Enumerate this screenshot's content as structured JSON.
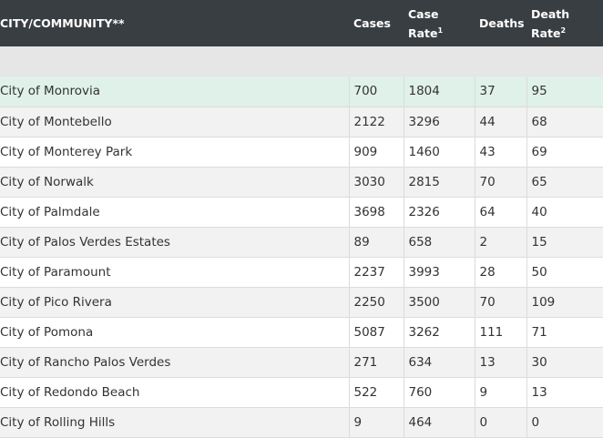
{
  "header": {
    "city": "CITY/COMMUNITY**",
    "cases": "Cases",
    "case_rate_line1": "Case",
    "case_rate_line2": "Rate",
    "case_rate_sup": "1",
    "deaths": "Deaths",
    "death_rate_line1": "Death",
    "death_rate_line2": "Rate",
    "death_rate_sup": "2"
  },
  "rows": [
    {
      "city": "City of Monrovia",
      "cases": "700",
      "case_rate": "1804",
      "deaths": "37",
      "death_rate": "95"
    },
    {
      "city": "City of Montebello",
      "cases": "2122",
      "case_rate": "3296",
      "deaths": "44",
      "death_rate": "68"
    },
    {
      "city": "City of Monterey Park",
      "cases": "909",
      "case_rate": "1460",
      "deaths": "43",
      "death_rate": "69"
    },
    {
      "city": "City of Norwalk",
      "cases": "3030",
      "case_rate": "2815",
      "deaths": "70",
      "death_rate": "65"
    },
    {
      "city": "City of Palmdale",
      "cases": "3698",
      "case_rate": "2326",
      "deaths": "64",
      "death_rate": "40"
    },
    {
      "city": "City of Palos Verdes Estates",
      "cases": "89",
      "case_rate": "658",
      "deaths": "2",
      "death_rate": "15"
    },
    {
      "city": "City of Paramount",
      "cases": "2237",
      "case_rate": "3993",
      "deaths": "28",
      "death_rate": "50"
    },
    {
      "city": "City of Pico Rivera",
      "cases": "2250",
      "case_rate": "3500",
      "deaths": "70",
      "death_rate": "109"
    },
    {
      "city": "City of Pomona",
      "cases": "5087",
      "case_rate": "3262",
      "deaths": "111",
      "death_rate": "71"
    },
    {
      "city": "City of Rancho Palos Verdes",
      "cases": "271",
      "case_rate": "634",
      "deaths": "13",
      "death_rate": "30"
    },
    {
      "city": "City of Redondo Beach",
      "cases": "522",
      "case_rate": "760",
      "deaths": "9",
      "death_rate": "13"
    },
    {
      "city": "City of Rolling Hills",
      "cases": "9",
      "case_rate": "464",
      "deaths": "0",
      "death_rate": "0"
    }
  ],
  "colors": {
    "header_bg": "#393e42",
    "highlight_row": "#dff1e8",
    "stripe_row": "#f2f2f2"
  }
}
